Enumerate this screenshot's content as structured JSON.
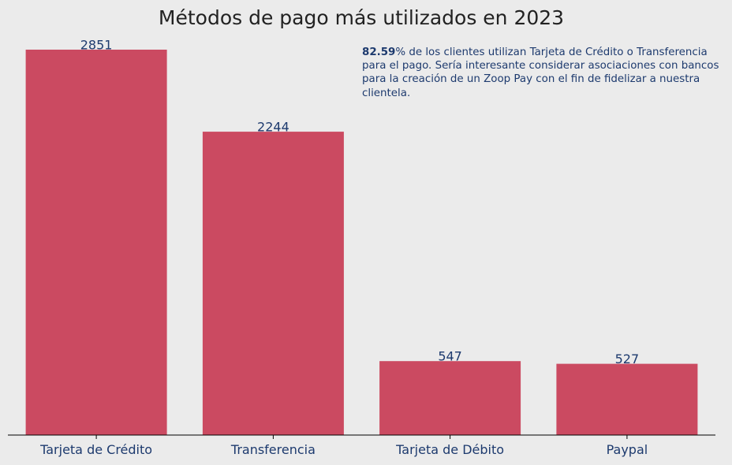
{
  "chart_data": {
    "type": "bar",
    "title": "Métodos de pago más utilizados en 2023",
    "xlabel": "",
    "ylabel": "",
    "categories": [
      "Tarjeta de Crédito",
      "Transferencia",
      "Tarjeta de Débito",
      "Paypal"
    ],
    "values": [
      2851,
      2244,
      547,
      527
    ],
    "ylim": [
      0,
      3000
    ],
    "grid": false,
    "bar_color": "#cb4a61",
    "label_color": "#1d3a6e",
    "background": "#ebebeb"
  },
  "annotation": {
    "highlight": "82.59",
    "text": "% de los clientes utilizan Tarjeta de Crédito o Transferencia para el pago. Sería interesante considerar asociaciones con bancos para la creación de un Zoop Pay con el fin de fidelizar a nuestra clientela."
  }
}
